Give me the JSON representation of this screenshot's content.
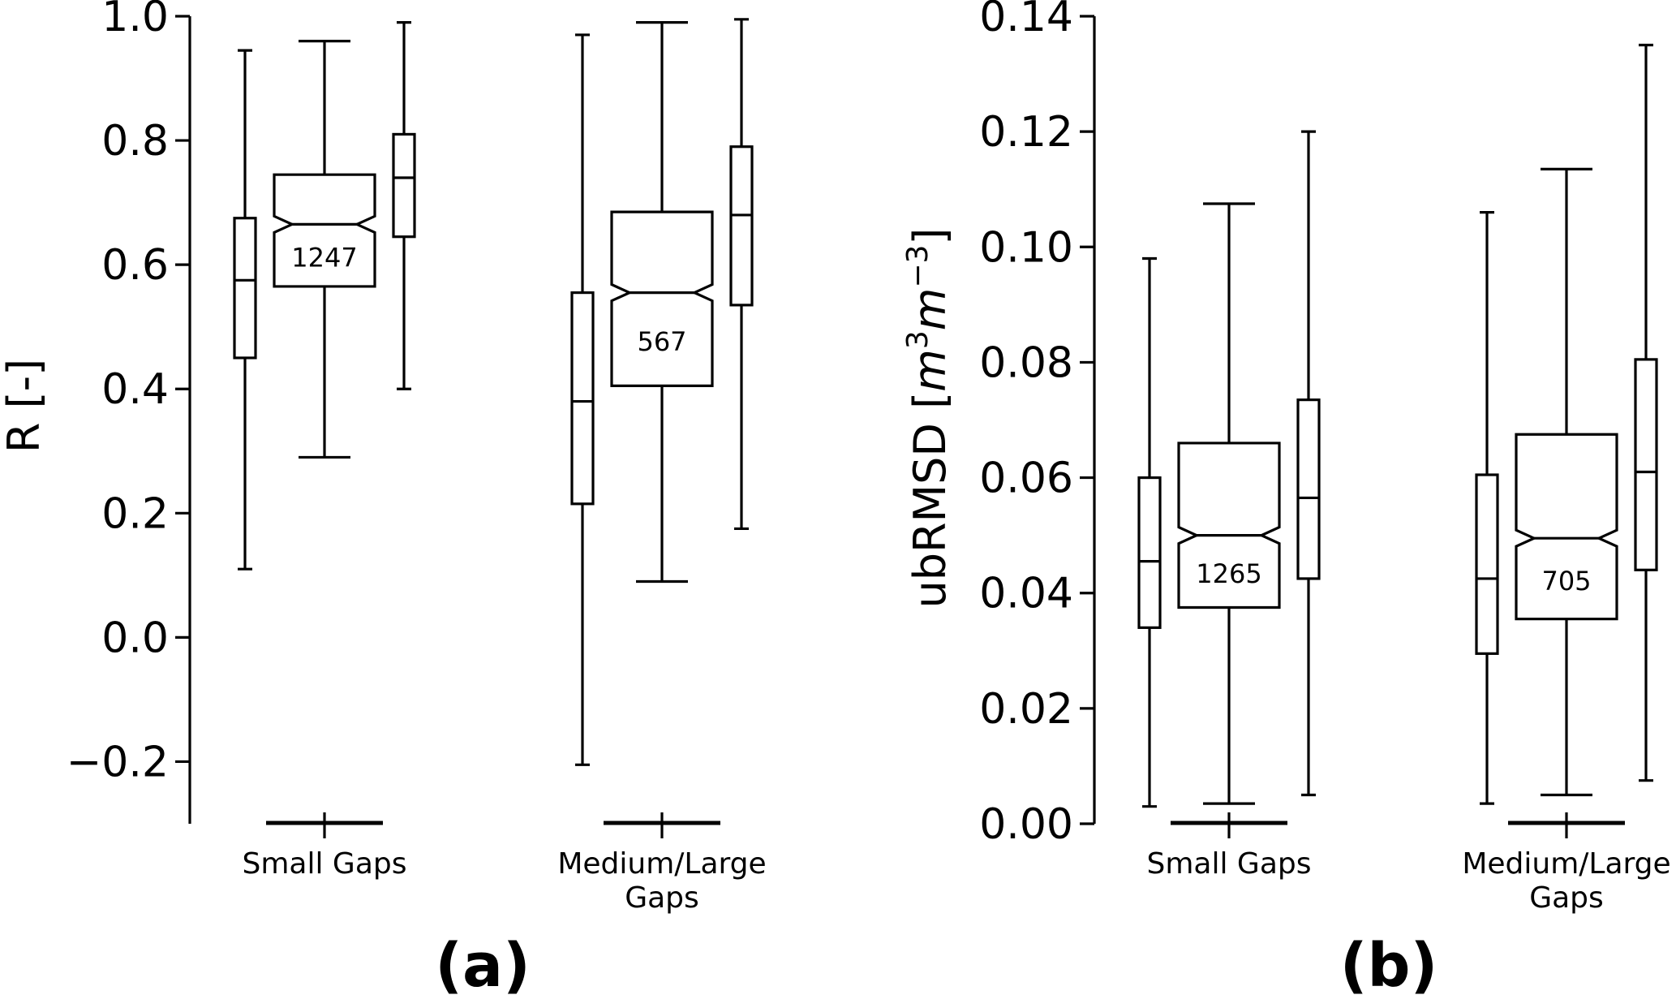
{
  "chart_data": [
    {
      "type": "box",
      "panel_label": "(a)",
      "ylabel": "R [-]",
      "ylim": [
        -0.3,
        1.0
      ],
      "yticks": [
        -0.2,
        0.0,
        0.2,
        0.4,
        0.6,
        0.8,
        1.0
      ],
      "ytick_labels": [
        "−0.2",
        "0.0",
        "0.2",
        "0.4",
        "0.6",
        "0.8",
        "1.0"
      ],
      "groups": [
        {
          "category": "Small Gaps",
          "category_lines": [
            "Small Gaps"
          ],
          "boxes": [
            {
              "whisker_low": 0.11,
              "q1": 0.45,
              "median": 0.575,
              "q3": 0.675,
              "whisker_high": 0.945,
              "notched": false
            },
            {
              "whisker_low": 0.29,
              "q1": 0.565,
              "median": 0.665,
              "q3": 0.745,
              "whisker_high": 0.96,
              "notched": true,
              "count": "1247"
            },
            {
              "whisker_low": 0.4,
              "q1": 0.645,
              "median": 0.74,
              "q3": 0.81,
              "whisker_high": 0.99,
              "notched": false
            }
          ]
        },
        {
          "category": "Medium/Large Gaps",
          "category_lines": [
            "Medium/Large",
            "Gaps"
          ],
          "boxes": [
            {
              "whisker_low": -0.205,
              "q1": 0.215,
              "median": 0.38,
              "q3": 0.555,
              "whisker_high": 0.97,
              "notched": false
            },
            {
              "whisker_low": 0.09,
              "q1": 0.405,
              "median": 0.555,
              "q3": 0.685,
              "whisker_high": 0.99,
              "notched": true,
              "count": "567"
            },
            {
              "whisker_low": 0.175,
              "q1": 0.535,
              "median": 0.68,
              "q3": 0.79,
              "whisker_high": 0.995,
              "notched": false
            }
          ]
        }
      ]
    },
    {
      "type": "box",
      "panel_label": "(b)",
      "ylabel": "ubRMSD [m³m⁻³]",
      "ylabel_parts": [
        "ubRMSD [",
        "m",
        "3",
        "m",
        "−3",
        "]"
      ],
      "ylim": [
        0.0,
        0.14
      ],
      "yticks": [
        0.0,
        0.02,
        0.04,
        0.06,
        0.08,
        0.1,
        0.12,
        0.14
      ],
      "ytick_labels": [
        "0.00",
        "0.02",
        "0.04",
        "0.06",
        "0.08",
        "0.10",
        "0.12",
        "0.14"
      ],
      "groups": [
        {
          "category": "Small Gaps",
          "category_lines": [
            "Small Gaps"
          ],
          "boxes": [
            {
              "whisker_low": 0.003,
              "q1": 0.034,
              "median": 0.0455,
              "q3": 0.06,
              "whisker_high": 0.098,
              "notched": false
            },
            {
              "whisker_low": 0.0035,
              "q1": 0.0375,
              "median": 0.05,
              "q3": 0.066,
              "whisker_high": 0.1075,
              "notched": true,
              "count": "1265"
            },
            {
              "whisker_low": 0.005,
              "q1": 0.0425,
              "median": 0.0565,
              "q3": 0.0735,
              "whisker_high": 0.12,
              "notched": false
            }
          ]
        },
        {
          "category": "Medium/Large Gaps",
          "category_lines": [
            "Medium/Large",
            "Gaps"
          ],
          "boxes": [
            {
              "whisker_low": 0.0035,
              "q1": 0.0295,
              "median": 0.0425,
              "q3": 0.0605,
              "whisker_high": 0.106,
              "notched": false
            },
            {
              "whisker_low": 0.005,
              "q1": 0.0355,
              "median": 0.0495,
              "q3": 0.0675,
              "whisker_high": 0.1135,
              "notched": true,
              "count": "705"
            },
            {
              "whisker_low": 0.0075,
              "q1": 0.044,
              "median": 0.061,
              "q3": 0.0805,
              "whisker_high": 0.135,
              "notched": false
            }
          ]
        }
      ]
    }
  ]
}
